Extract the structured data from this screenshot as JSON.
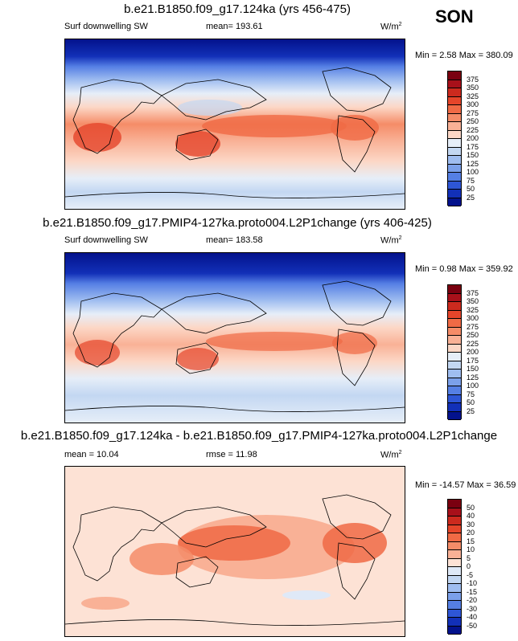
{
  "season": "SON",
  "units": "W/m",
  "units_sup": "2",
  "panels": [
    {
      "title": "b.e21.B1850.f09_g17.124ka (yrs 456-475)",
      "variable": "Surf downwelling SW",
      "stat1": "mean= 193.61",
      "stat2": "",
      "minmax": "Min =  2.58 Max = 380.09",
      "levels": [
        "375",
        "350",
        "325",
        "300",
        "275",
        "250",
        "225",
        "200",
        "175",
        "150",
        "125",
        "100",
        "75",
        "50",
        "25"
      ]
    },
    {
      "title": "b.e21.B1850.f09_g17.PMIP4-127ka.proto004.L2P1change (yrs 406-425)",
      "variable": "Surf downwelling SW",
      "stat1": "mean= 183.58",
      "stat2": "",
      "minmax": "Min =  0.98 Max = 359.92",
      "levels": [
        "375",
        "350",
        "325",
        "300",
        "275",
        "250",
        "225",
        "200",
        "175",
        "150",
        "125",
        "100",
        "75",
        "50",
        "25"
      ]
    },
    {
      "title": "b.e21.B1850.f09_g17.124ka - b.e21.B1850.f09_g17.PMIP4-127ka.proto004.L2P1change",
      "variable": "",
      "stat1": "mean =  10.04",
      "stat2": "rmse =  11.98",
      "minmax": "Min = -14.57 Max =  36.59",
      "levels": [
        "50",
        "40",
        "30",
        "20",
        "15",
        "10",
        "5",
        "0",
        "-5",
        "-10",
        "-15",
        "-20",
        "-30",
        "-40",
        "-50"
      ]
    }
  ],
  "colors": {
    "abs_ramp": [
      "#7a0010",
      "#a8101a",
      "#cc2a1e",
      "#e5452a",
      "#f06a45",
      "#f58c68",
      "#f9b196",
      "#fcd7c6",
      "#e6eef8",
      "#c3d7f2",
      "#9fbdf0",
      "#7ba0ea",
      "#557fe4",
      "#2e56d6",
      "#1230b8",
      "#03128c"
    ],
    "diff_ramp": [
      "#7a0010",
      "#a8101a",
      "#cc2a1e",
      "#e5452a",
      "#f06a45",
      "#f58c68",
      "#f9b196",
      "#fde2d5",
      "#dfe9f7",
      "#c3d7f2",
      "#9fbdf0",
      "#7ba0ea",
      "#557fe4",
      "#2e56d6",
      "#1230b8",
      "#03128c"
    ]
  }
}
